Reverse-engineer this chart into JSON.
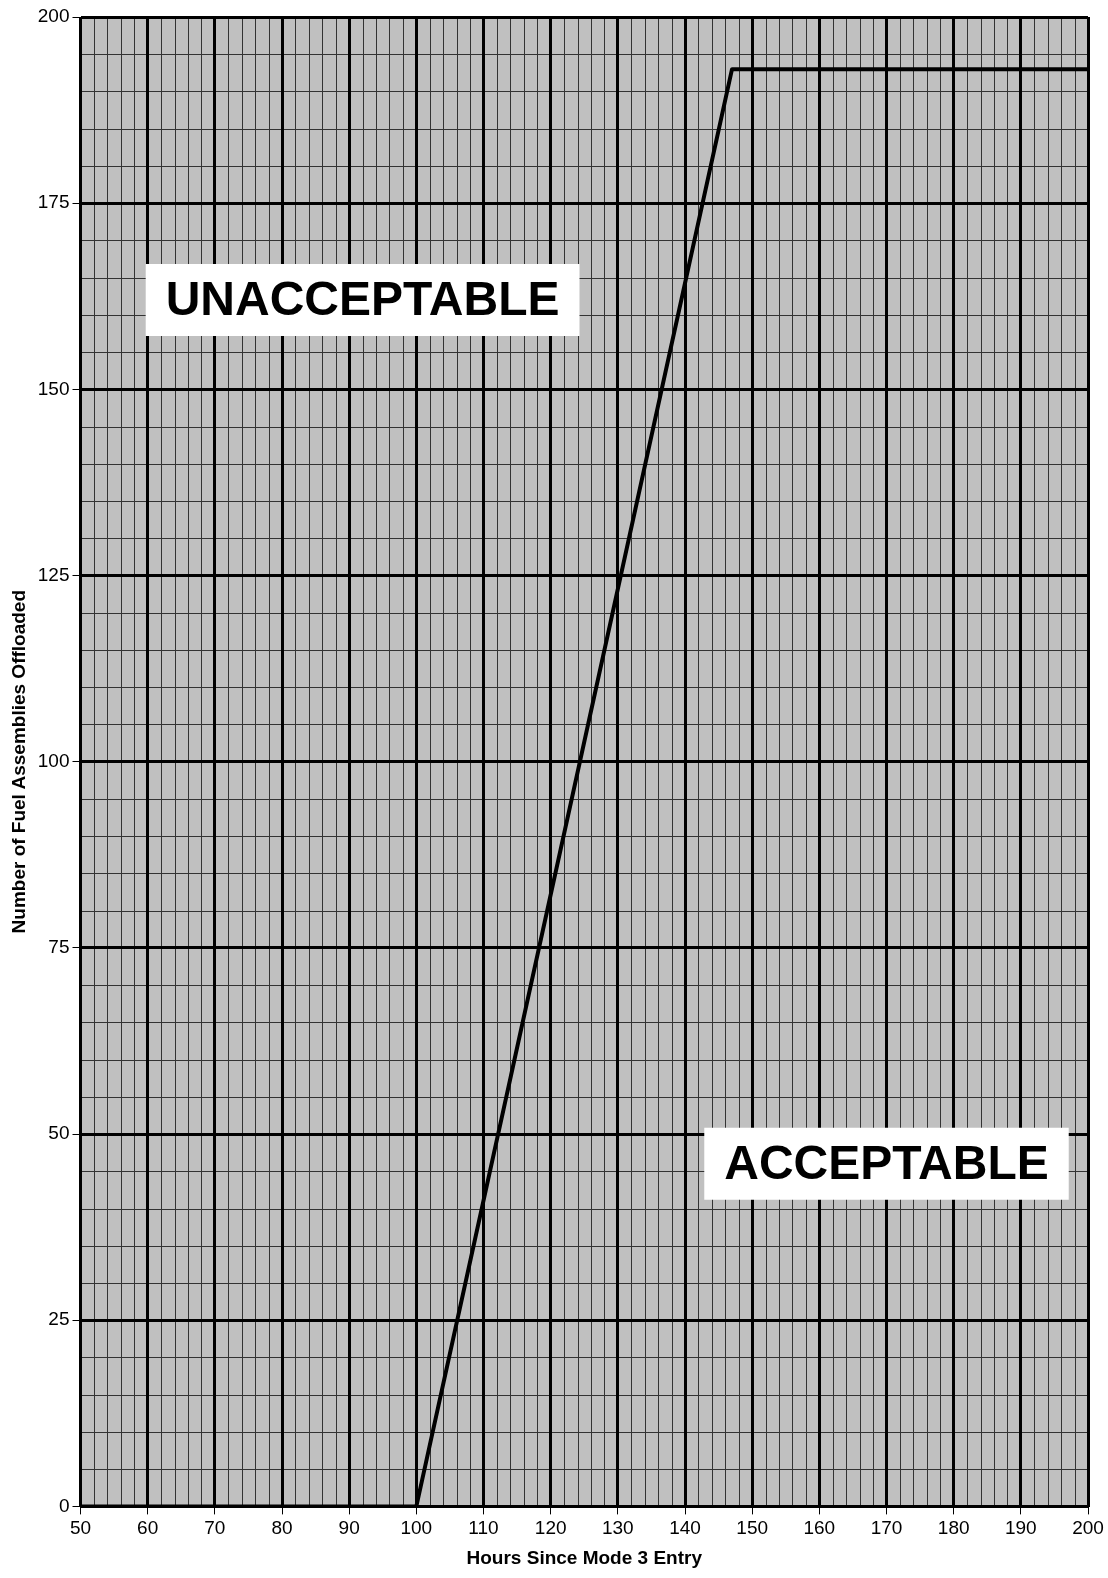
{
  "chart_data": {
    "type": "line",
    "xlabel": "Hours Since Mode 3 Entry",
    "ylabel": "Number of Fuel Assemblies Offloaded",
    "x": [
      50,
      100,
      147,
      200
    ],
    "series": [
      {
        "color": "#000000",
        "values": [
          0,
          0,
          193,
          193
        ]
      }
    ],
    "xlim": [
      50,
      200
    ],
    "xticks": [
      50,
      60,
      70,
      80,
      90,
      100,
      110,
      120,
      130,
      140,
      150,
      160,
      170,
      180,
      190,
      200
    ],
    "ylim": [
      0,
      200
    ],
    "yticks": [
      0,
      25,
      50,
      75,
      100,
      125,
      150,
      175,
      200
    ],
    "grid": true,
    "legend": false,
    "marker": "none",
    "line_style": "solid",
    "annotations": [
      "UNACCEPTABLE",
      "ACCEPTABLE"
    ]
  }
}
